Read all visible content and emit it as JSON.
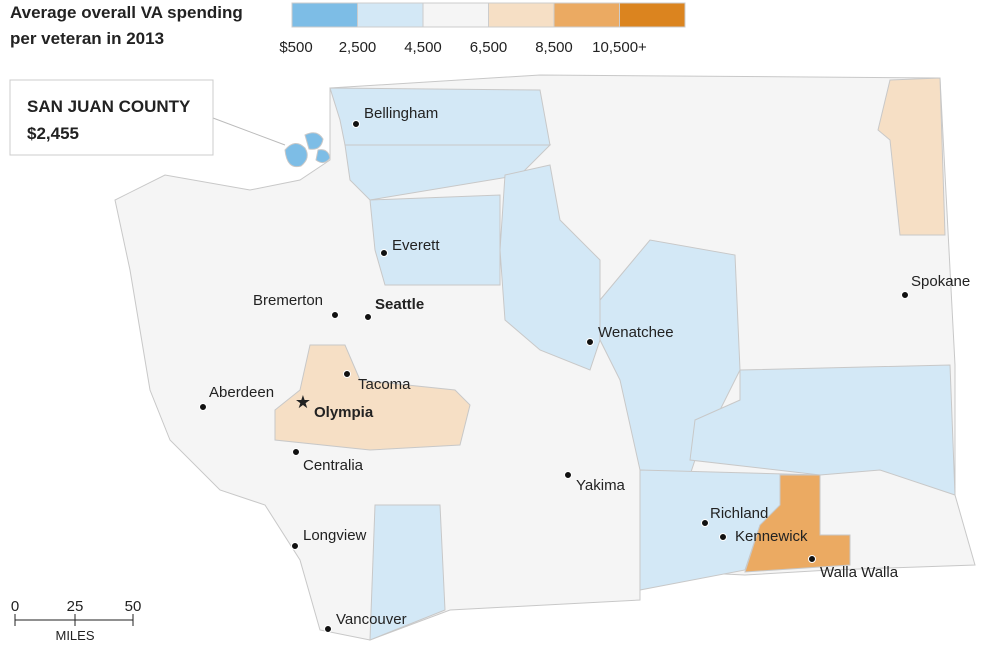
{
  "title": [
    "Average overall VA spending",
    "per veteran in 2013"
  ],
  "legend": {
    "colors": [
      "#7dbde6",
      "#d3e8f6",
      "#f5f5f5",
      "#f6dfc5",
      "#ebaa62",
      "#db841f"
    ],
    "labels": [
      "$500",
      "2,500",
      "4,500",
      "6,500",
      "8,500",
      "10,500+"
    ]
  },
  "callout": {
    "name": "SAN JUAN COUNTY",
    "value": "$2,455"
  },
  "cities": [
    {
      "label": "Bellingham",
      "bold": false
    },
    {
      "label": "Everett",
      "bold": false
    },
    {
      "label": "Spokane",
      "bold": false
    },
    {
      "label": "Bremerton",
      "bold": false
    },
    {
      "label": "Seattle",
      "bold": true
    },
    {
      "label": "Wenatchee",
      "bold": false
    },
    {
      "label": "Tacoma",
      "bold": false
    },
    {
      "label": "Aberdeen",
      "bold": false
    },
    {
      "label": "Olympia",
      "bold": true
    },
    {
      "label": "Centralia",
      "bold": false
    },
    {
      "label": "Yakima",
      "bold": false
    },
    {
      "label": "Richland",
      "bold": false
    },
    {
      "label": "Kennewick",
      "bold": false
    },
    {
      "label": "Walla Walla",
      "bold": false
    },
    {
      "label": "Longview",
      "bold": false
    },
    {
      "label": "Vancouver",
      "bold": false
    }
  ],
  "scale": {
    "labels": [
      "0",
      "25",
      "50"
    ],
    "unit": "MILES"
  }
}
